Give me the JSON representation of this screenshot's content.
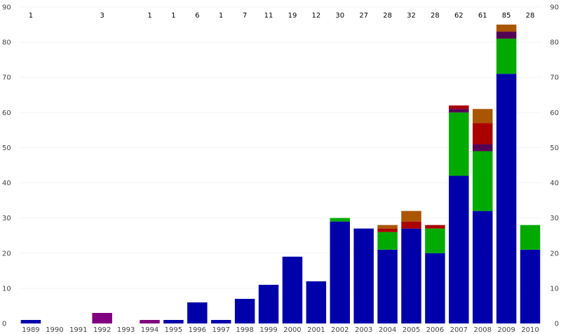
{
  "chart_data": {
    "type": "bar",
    "stacked": true,
    "title": "",
    "xlabel": "",
    "ylabel": "",
    "ylim": [
      0,
      90
    ],
    "yticks": [
      0,
      10,
      20,
      30,
      40,
      50,
      60,
      70,
      80,
      90
    ],
    "grid": true,
    "legend": "none",
    "categories": [
      "1989",
      "1990",
      "1991",
      "1992",
      "1993",
      "1994",
      "1995",
      "1996",
      "1997",
      "1998",
      "1999",
      "2000",
      "2001",
      "2002",
      "2003",
      "2004",
      "2005",
      "2006",
      "2007",
      "2008",
      "2009",
      "2010"
    ],
    "totals": [
      "1",
      "",
      "",
      "3",
      "",
      "1",
      "1",
      "6",
      "1",
      "7",
      "11",
      "19",
      "12",
      "30",
      "27",
      "28",
      "32",
      "28",
      "62",
      "61",
      "85",
      "28"
    ],
    "series": [
      {
        "color": "#0000aa",
        "values": [
          1,
          0,
          0,
          0,
          0,
          0,
          1,
          6,
          1,
          7,
          11,
          19,
          12,
          29,
          27,
          21,
          27,
          20,
          42,
          32,
          71,
          21
        ]
      },
      {
        "color": "#00aa00",
        "values": [
          0,
          0,
          0,
          0,
          0,
          0,
          0,
          0,
          0,
          0,
          0,
          0,
          0,
          1,
          0,
          5,
          0,
          7,
          18,
          17,
          10,
          7
        ]
      },
      {
        "color": "#800080",
        "values": [
          0,
          0,
          0,
          3,
          0,
          1,
          0,
          0,
          0,
          0,
          0,
          0,
          0,
          0,
          0,
          0,
          0,
          0,
          0,
          0,
          0,
          0
        ]
      },
      {
        "color": "#550055",
        "values": [
          0,
          0,
          0,
          0,
          0,
          0,
          0,
          0,
          0,
          0,
          0,
          0,
          0,
          0,
          0,
          0,
          0,
          0,
          1,
          2,
          2,
          0
        ]
      },
      {
        "color": "#aa0000",
        "values": [
          0,
          0,
          0,
          0,
          0,
          0,
          0,
          0,
          0,
          0,
          0,
          0,
          0,
          0,
          0,
          1,
          2,
          1,
          1,
          6,
          0,
          0
        ]
      },
      {
        "color": "#aa5500",
        "values": [
          0,
          0,
          0,
          0,
          0,
          0,
          0,
          0,
          0,
          0,
          0,
          0,
          0,
          0,
          0,
          1,
          3,
          0,
          0,
          4,
          2,
          0
        ]
      }
    ]
  }
}
